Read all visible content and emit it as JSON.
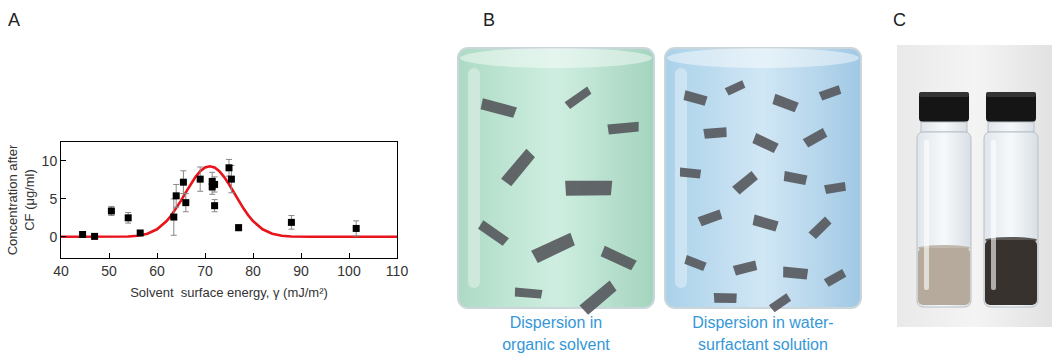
{
  "chart_data": {
    "type": "scatter",
    "xlabel": "Solvent  surface energy, γ (mJ/m²)",
    "ylabel": [
      "Concentration after",
      "CF (μg/ml)"
    ],
    "series": [
      {
        "type": "scatter",
        "marker": "square",
        "color": "#000000",
        "x": [
          44.5,
          47,
          50.5,
          54,
          56.5,
          63.5,
          64,
          65.5,
          66,
          69,
          71.5,
          71.5,
          72,
          72,
          75,
          75.5,
          77,
          88,
          101.5
        ],
        "values": [
          0.3,
          0.05,
          3.4,
          2.5,
          0.5,
          2.6,
          5.4,
          7.2,
          4.5,
          7.6,
          7.3,
          6.6,
          6.9,
          4.1,
          9.1,
          7.6,
          1.2,
          1.9,
          1.1
        ],
        "errors": [
          0.2,
          0.3,
          0.6,
          0.7,
          0.2,
          2.4,
          1.5,
          1.5,
          1.2,
          1.6,
          1.2,
          1.0,
          1.0,
          0.8,
          1.1,
          1.8,
          0.4,
          0.9,
          1.0
        ]
      },
      {
        "type": "line",
        "line_style": "solid",
        "color": "#e8141c",
        "x": [
          40,
          45,
          50,
          52,
          54,
          56,
          58,
          60,
          62,
          63,
          64,
          65,
          66,
          67,
          68,
          69,
          70,
          71,
          72,
          73,
          74,
          75,
          76,
          77,
          78,
          79,
          80,
          82,
          84,
          86,
          88,
          92,
          100,
          110
        ],
        "values": [
          0,
          0,
          0,
          0.01,
          0.04,
          0.14,
          0.41,
          0.99,
          2.07,
          2.84,
          3.75,
          4.77,
          5.85,
          6.92,
          7.87,
          8.64,
          9.13,
          9.3,
          9.13,
          8.64,
          7.87,
          6.92,
          5.85,
          4.77,
          3.75,
          2.84,
          2.07,
          0.99,
          0.41,
          0.14,
          0.04,
          0,
          0,
          0
        ]
      }
    ],
    "xlim": [
      40,
      110
    ],
    "ylim": [
      -2.8,
      12.5
    ],
    "xticks": [
      40,
      50,
      60,
      70,
      80,
      90,
      100,
      110
    ],
    "yticks": [
      0,
      5,
      10
    ],
    "grid": false
  },
  "panels": {
    "labels": [
      "A",
      "B",
      "C"
    ],
    "B": {
      "captions": [
        [
          "Dispersion in",
          "organic solvent"
        ],
        [
          "Dispersion in water-",
          "surfactant solution"
        ]
      ]
    }
  }
}
